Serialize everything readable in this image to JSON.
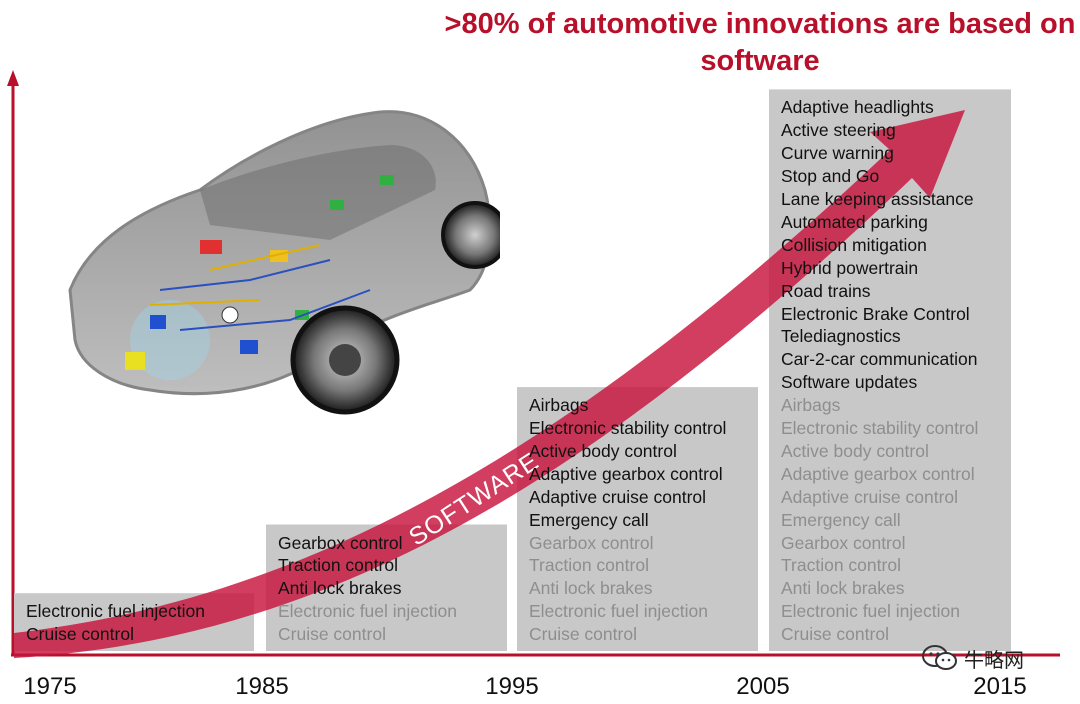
{
  "headline": ">80% of automotive innovations are based on software",
  "arrow_label": "SOFTWARE",
  "watermark": "牛略网",
  "colors": {
    "accent": "#b8102a",
    "arrow": "#c8143c",
    "box": "#c8c8c8",
    "new_text": "#111111",
    "old_text": "#8e8e8e"
  },
  "chart_data": {
    "type": "timeline",
    "x_ticks": [
      "1975",
      "1985",
      "1995",
      "2005",
      "2015"
    ],
    "periods": [
      {
        "start": "1975",
        "end": "1985",
        "new_features": [
          "Electronic fuel injection",
          "Cruise control"
        ],
        "carried_features": []
      },
      {
        "start": "1985",
        "end": "1995",
        "new_features": [
          "Gearbox control",
          "Traction control",
          "Anti lock brakes"
        ],
        "carried_features": [
          "Electronic fuel injection",
          "Cruise control"
        ]
      },
      {
        "start": "1995",
        "end": "2005",
        "new_features": [
          "Airbags",
          "Electronic stability control",
          "Active body control",
          "Adaptive gearbox control",
          "Adaptive cruise control",
          "Emergency call"
        ],
        "carried_features": [
          "Gearbox control",
          "Traction control",
          "Anti lock brakes",
          "Electronic fuel injection",
          "Cruise control"
        ]
      },
      {
        "start": "2005",
        "end": "2015",
        "new_features": [
          "Adaptive headlights",
          "Active steering",
          "Curve warning",
          "Stop and Go",
          "Lane keeping assistance",
          "Automated parking",
          "Collision mitigation",
          "Hybrid powertrain",
          "Road trains",
          "Electronic Brake Control",
          "Telediagnostics",
          "Car-2-car communication",
          "Software updates"
        ],
        "carried_features": [
          "Airbags",
          "Electronic stability control",
          "Active body control",
          "Adaptive gearbox control",
          "Adaptive cruise control",
          "Emergency call",
          "Gearbox control",
          "Traction control",
          "Anti lock brakes",
          "Electronic fuel injection",
          "Cruise control"
        ]
      }
    ]
  }
}
